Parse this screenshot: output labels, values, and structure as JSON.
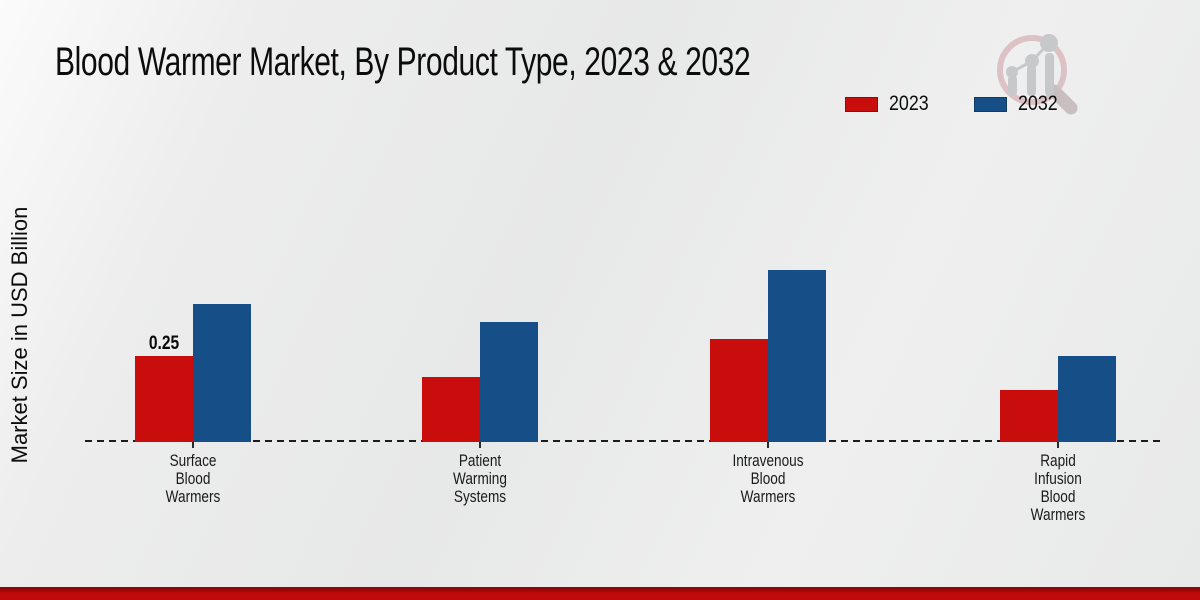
{
  "branding": {
    "logo_icon": "magnifier-growth-chart-icon"
  },
  "chart_data": {
    "type": "bar",
    "title": "Blood Warmer Market, By Product Type, 2023 & 2032",
    "xlabel": "",
    "ylabel": "Market Size in USD Billion",
    "units": "USD Billion",
    "categories": [
      "Surface Blood Warmers",
      "Patient Warming Systems",
      "Intravenous Blood Warmers",
      "Rapid Infusion Blood Warmers"
    ],
    "category_label_lines": [
      "Surface\nBlood\nWarmers",
      "Patient\nWarming\nSystems",
      "Intravenous\nBlood\nWarmers",
      "Rapid\nInfusion\nBlood\nWarmers"
    ],
    "series": [
      {
        "name": "2023",
        "color": "#c90c0c",
        "values": [
          0.25,
          0.19,
          0.3,
          0.15
        ]
      },
      {
        "name": "2032",
        "color": "#164f88",
        "values": [
          0.4,
          0.35,
          0.5,
          0.25
        ]
      }
    ],
    "data_labels": [
      {
        "series_index": 0,
        "category_index": 0,
        "text": "0.25"
      }
    ],
    "ylim": [
      0,
      0.55
    ],
    "grid": false,
    "axis_line_style": "dashed",
    "y_axis_ticks_visible": false,
    "legend_position": "top-right"
  },
  "footer": {
    "accent_bar_color": "#c00909"
  }
}
